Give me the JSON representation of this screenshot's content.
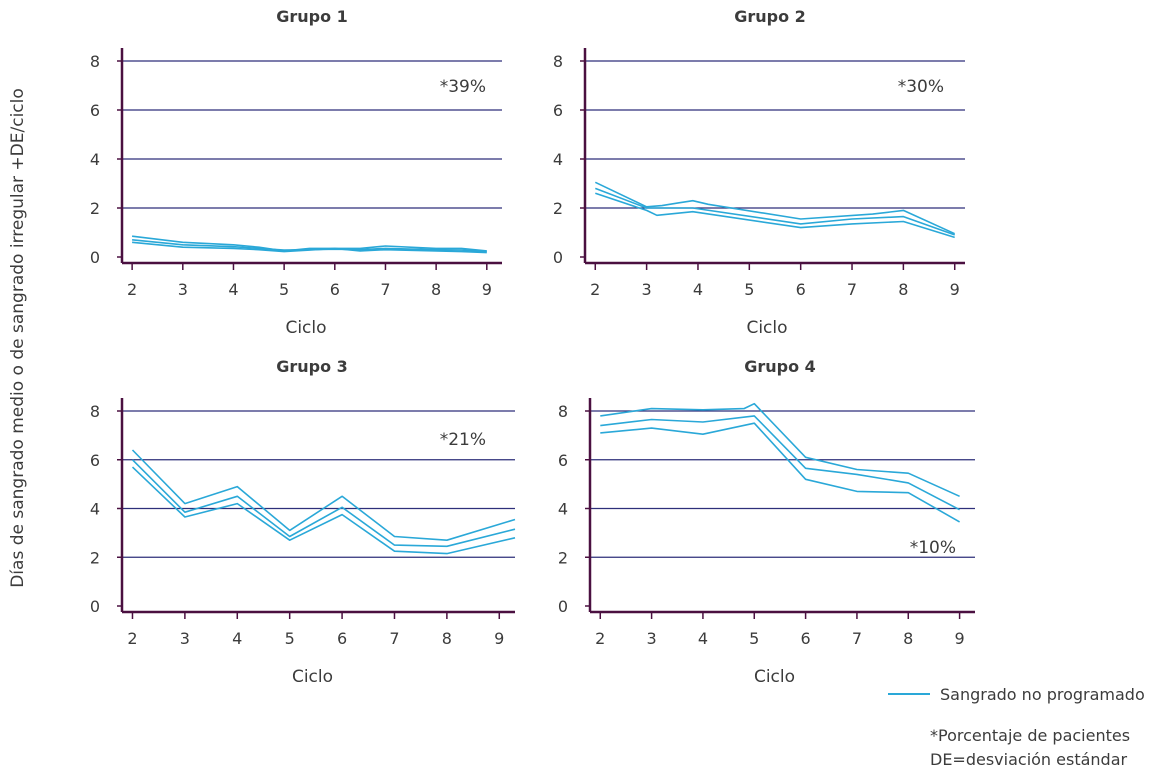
{
  "y_axis_label": "Días de sangrado medio o de sangrado irregular +DE/ciclo",
  "legend": {
    "series_label": "Sangrado no programado",
    "footnote_1": "*Porcentaje de pacientes",
    "footnote_2": "DE=desviación estándar"
  },
  "colors": {
    "series": "#2aa8d8",
    "axis": "#4a1040",
    "grid": "#2e2f7a",
    "text": "#3c3c3c"
  },
  "chart_data": [
    {
      "type": "line",
      "title": "Grupo 1",
      "xlabel": "Ciclo",
      "ylabel": "",
      "annotation": "*39%",
      "x_ticks": [
        2,
        3,
        4,
        5,
        6,
        7,
        8,
        9
      ],
      "y_ticks": [
        0,
        2,
        4,
        6,
        8
      ],
      "xlim": [
        1.8,
        9.3
      ],
      "ylim": [
        -0.1,
        8.5
      ],
      "series": [
        {
          "x": [
            2,
            3,
            4,
            4.5,
            5,
            5.5,
            6,
            6.5,
            7,
            8,
            8.5,
            9
          ],
          "y": [
            0.85,
            0.6,
            0.5,
            0.4,
            0.25,
            0.35,
            0.35,
            0.35,
            0.45,
            0.35,
            0.35,
            0.25
          ]
        },
        {
          "x": [
            2,
            3,
            4,
            4.5,
            5,
            5.5,
            6,
            6.5,
            7,
            8,
            8.5,
            9
          ],
          "y": [
            0.7,
            0.5,
            0.42,
            0.35,
            0.28,
            0.3,
            0.32,
            0.3,
            0.35,
            0.3,
            0.28,
            0.22
          ]
        },
        {
          "x": [
            2,
            3,
            4,
            4.5,
            5,
            5.5,
            6,
            6.5,
            7,
            8,
            8.5,
            9
          ],
          "y": [
            0.6,
            0.4,
            0.35,
            0.3,
            0.22,
            0.28,
            0.35,
            0.25,
            0.3,
            0.25,
            0.22,
            0.18
          ]
        }
      ]
    },
    {
      "type": "line",
      "title": "Grupo 2",
      "xlabel": "Ciclo",
      "ylabel": "",
      "annotation": "*30%",
      "x_ticks": [
        2,
        3,
        4,
        5,
        6,
        7,
        8,
        9
      ],
      "y_ticks": [
        0,
        2,
        4,
        6,
        8
      ],
      "xlim": [
        1.8,
        9.2
      ],
      "ylim": [
        -0.1,
        8.5
      ],
      "series": [
        {
          "x": [
            2,
            3,
            3.3,
            3.6,
            3.9,
            4.2,
            6,
            7.4,
            8,
            9
          ],
          "y": [
            3.05,
            2.05,
            2.1,
            2.2,
            2.3,
            2.15,
            1.55,
            1.75,
            1.9,
            0.95
          ]
        },
        {
          "x": [
            2,
            3,
            3.2,
            3.9,
            6,
            7,
            8,
            9
          ],
          "y": [
            2.8,
            2.0,
            2.0,
            2.0,
            1.35,
            1.55,
            1.65,
            0.9
          ]
        },
        {
          "x": [
            2,
            3,
            3.2,
            3.9,
            6,
            7,
            8,
            9
          ],
          "y": [
            2.6,
            1.9,
            1.7,
            1.85,
            1.2,
            1.35,
            1.45,
            0.8
          ]
        }
      ]
    },
    {
      "type": "line",
      "title": "Grupo 3",
      "xlabel": "Ciclo",
      "ylabel": "",
      "annotation": "*21%",
      "x_ticks": [
        2,
        3,
        4,
        5,
        6,
        7,
        8,
        9
      ],
      "y_ticks": [
        0,
        2,
        4,
        6,
        8
      ],
      "xlim": [
        1.8,
        9.3
      ],
      "ylim": [
        -0.1,
        8.5
      ],
      "series": [
        {
          "x": [
            2,
            3,
            4,
            5,
            6,
            7,
            8,
            9.3
          ],
          "y": [
            6.4,
            4.2,
            4.9,
            3.1,
            4.5,
            2.85,
            2.7,
            3.55
          ]
        },
        {
          "x": [
            2,
            3,
            4,
            5,
            6,
            7,
            8,
            9.3
          ],
          "y": [
            6.0,
            3.85,
            4.5,
            2.85,
            4.05,
            2.5,
            2.45,
            3.15
          ]
        },
        {
          "x": [
            2,
            3,
            4,
            5,
            6,
            7,
            8,
            9.3
          ],
          "y": [
            5.7,
            3.65,
            4.2,
            2.7,
            3.75,
            2.25,
            2.15,
            2.8
          ]
        }
      ]
    },
    {
      "type": "line",
      "title": "Grupo 4",
      "xlabel": "Ciclo",
      "ylabel": "",
      "annotation": "*10%",
      "x_ticks": [
        2,
        3,
        4,
        5,
        6,
        7,
        8,
        9
      ],
      "y_ticks": [
        0,
        2,
        4,
        6,
        8
      ],
      "xlim": [
        1.8,
        9.3
      ],
      "ylim": [
        -0.1,
        8.5
      ],
      "series": [
        {
          "x": [
            2,
            3,
            4,
            4.8,
            5,
            6,
            7,
            8,
            9
          ],
          "y": [
            7.8,
            8.1,
            8.05,
            8.1,
            8.3,
            6.1,
            5.6,
            5.45,
            4.5
          ]
        },
        {
          "x": [
            2,
            3,
            4,
            5,
            6,
            7,
            8,
            9
          ],
          "y": [
            7.4,
            7.65,
            7.55,
            7.8,
            5.65,
            5.4,
            5.05,
            3.95
          ]
        },
        {
          "x": [
            2,
            3,
            4,
            5,
            6,
            7,
            8,
            9
          ],
          "y": [
            7.1,
            7.3,
            7.05,
            7.5,
            5.2,
            4.7,
            4.65,
            3.45
          ]
        }
      ]
    }
  ]
}
